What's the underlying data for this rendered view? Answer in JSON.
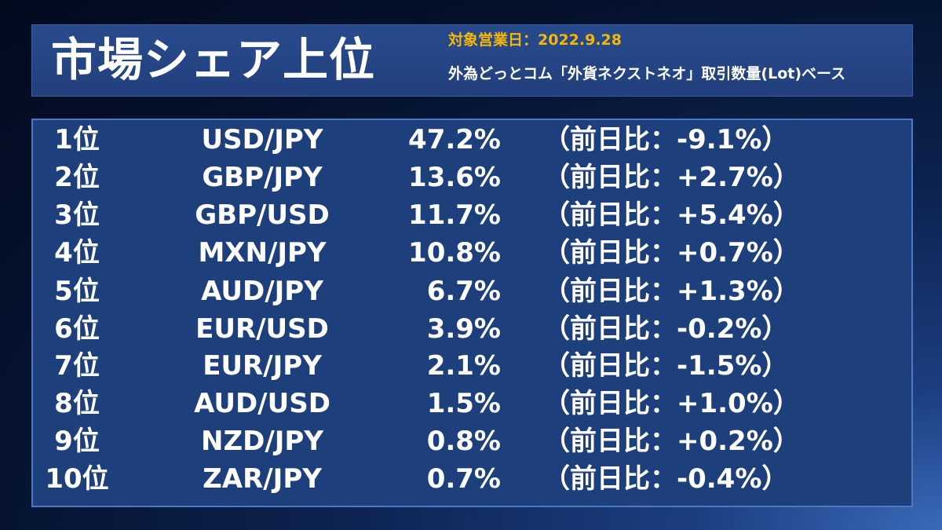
{
  "header": {
    "title": "市場シェア上位",
    "date_label": "対象営業日：2022.9.28",
    "description": "外為どっとコム「外貨ネクストネオ」取引数量(Lot)ベース"
  },
  "rankings": [
    {
      "rank": "1位",
      "pair": "USD/JPY",
      "share": "47.2%",
      "change": "（前日比：-9.1%）"
    },
    {
      "rank": "2位",
      "pair": "GBP/JPY",
      "share": "13.6%",
      "change": "（前日比：+2.7%）"
    },
    {
      "rank": "3位",
      "pair": "GBP/USD",
      "share": "11.7%",
      "change": "（前日比：+5.4%）"
    },
    {
      "rank": "4位",
      "pair": "MXN/JPY",
      "share": "10.8%",
      "change": "（前日比：+0.7%）"
    },
    {
      "rank": "5位",
      "pair": "AUD/JPY",
      "share": "6.7%",
      "change": "（前日比：+1.3%）"
    },
    {
      "rank": "6位",
      "pair": "EUR/USD",
      "share": "3.9%",
      "change": "（前日比：-0.2%）"
    },
    {
      "rank": "7位",
      "pair": "EUR/JPY",
      "share": "2.1%",
      "change": "（前日比：-1.5%）"
    },
    {
      "rank": "8位",
      "pair": "AUD/USD",
      "share": "1.5%",
      "change": "（前日比：+1.0%）"
    },
    {
      "rank": "9位",
      "pair": "NZD/JPY",
      "share": "0.8%",
      "change": "（前日比：+0.2%）"
    },
    {
      "rank": "10位",
      "pair": "ZAR/JPY",
      "share": "0.7%",
      "change": "（前日比：-0.4%）"
    }
  ],
  "colors": {
    "accent": "#f5b800",
    "panel": "#1d3f7c",
    "panel_border": "#4d78c2",
    "header_panel": "#284b8e"
  }
}
